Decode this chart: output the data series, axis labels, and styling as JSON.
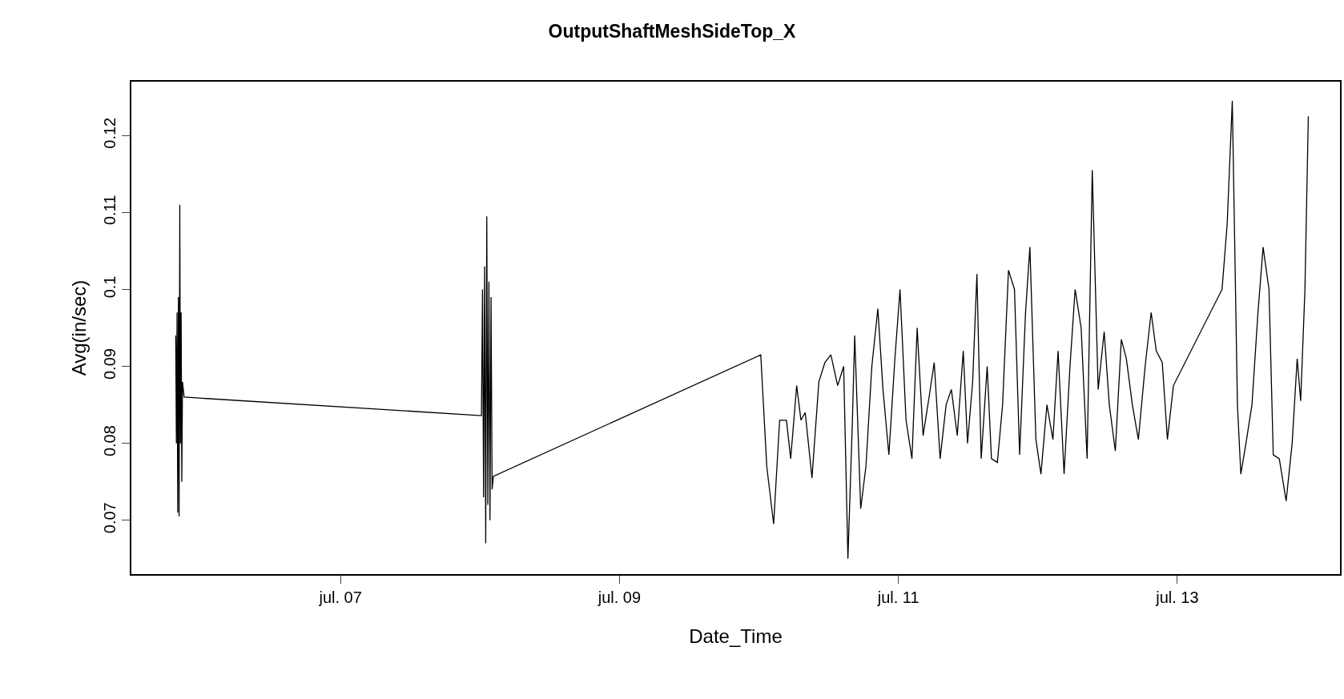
{
  "chart_data": {
    "type": "line",
    "title": "OutputShaftMeshSideTop_X",
    "xlabel": "Date_Time",
    "ylabel": "Avg(in/sec)",
    "marker": "none",
    "line_style": "solid",
    "xlim": [
      "--07-05T12:00",
      "--07-14T04:00"
    ],
    "xticks": [
      {
        "value": "--07-07",
        "label": "jul. 07"
      },
      {
        "value": "--07-09",
        "label": "jul. 09"
      },
      {
        "value": "--07-11",
        "label": "jul. 11"
      },
      {
        "value": "--07-13",
        "label": "jul. 13"
      }
    ],
    "ylim": [
      0.063,
      0.127
    ],
    "yticks": [
      0.07,
      0.08,
      0.09,
      0.1,
      0.11,
      0.12
    ],
    "series": [
      {
        "color": "#000000",
        "x": [
          "--07-05T19:38",
          "--07-05T19:45",
          "--07-05T19:52",
          "--07-05T19:59",
          "--07-05T20:06",
          "--07-05T20:13",
          "--07-05T20:20",
          "--07-05T20:27",
          "--07-05T20:34",
          "--07-05T20:41",
          "--07-05T20:48",
          "--07-05T21:05",
          "--07-08T00:15",
          "--07-08T00:26",
          "--07-08T00:37",
          "--07-08T00:48",
          "--07-08T00:59",
          "--07-08T01:10",
          "--07-08T01:21",
          "--07-08T01:32",
          "--07-08T01:43",
          "--07-08T01:54",
          "--07-08T02:05",
          "--07-08T02:18",
          "--07-10T00:19",
          "--07-10T01:21",
          "--07-10T02:32",
          "--07-10T03:34",
          "--07-10T04:44",
          "--07-10T05:28",
          "--07-10T06:30",
          "--07-10T07:14",
          "--07-10T07:58",
          "--07-10T09:08",
          "--07-10T10:19",
          "--07-10T11:21",
          "--07-10T12:23",
          "--07-10T13:33",
          "--07-10T14:35",
          "--07-10T15:19",
          "--07-10T16:03",
          "--07-10T16:29",
          "--07-10T17:31",
          "--07-10T18:25",
          "--07-10T19:26",
          "--07-10T20:28",
          "--07-10T21:21",
          "--07-10T22:22",
          "--07-10T23:24",
          "--07-11T00:17",
          "--07-11T01:19",
          "--07-11T02:20",
          "--07-11T03:14",
          "--07-11T04:15",
          "--07-11T05:17",
          "--07-11T06:10",
          "--07-11T07:11",
          "--07-11T08:13",
          "--07-11T09:07",
          "--07-11T10:08",
          "--07-11T11:10",
          "--07-11T11:54",
          "--07-11T12:47",
          "--07-11T13:31",
          "--07-11T14:15",
          "--07-11T15:17",
          "--07-11T16:01",
          "--07-11T17:02",
          "--07-11T17:56",
          "--07-11T18:57",
          "--07-11T19:59",
          "--07-11T20:52",
          "--07-11T21:53",
          "--07-11T22:38",
          "--07-11T23:40",
          "--07-12T00:32",
          "--07-12T01:34",
          "--07-12T02:36",
          "--07-12T03:29",
          "--07-12T04:31",
          "--07-12T05:32",
          "--07-12T06:25",
          "--07-12T07:27",
          "--07-12T08:29",
          "--07-12T09:22",
          "--07-12T10:23",
          "--07-12T11:25",
          "--07-12T12:18",
          "--07-12T13:20",
          "--07-12T14:22",
          "--07-12T15:14",
          "--07-12T16:16",
          "--07-12T17:18",
          "--07-12T18:28",
          "--07-12T19:30",
          "--07-12T20:23",
          "--07-12T21:25",
          "--07-12T22:18",
          "--07-12T23:20",
          "--07-13T07:42",
          "--07-13T08:35",
          "--07-13T09:28",
          "--07-13T10:21",
          "--07-13T10:56",
          "--07-13T11:49",
          "--07-13T12:51",
          "--07-13T13:53",
          "--07-13T14:46",
          "--07-13T15:47",
          "--07-13T16:31",
          "--07-13T17:33",
          "--07-13T18:44",
          "--07-13T19:46",
          "--07-13T20:38",
          "--07-13T21:14",
          "--07-13T21:58",
          "--07-13T22:33"
        ],
        "values": [
          0.094,
          0.08,
          0.097,
          0.071,
          0.099,
          0.0705,
          0.111,
          0.08,
          0.097,
          0.075,
          0.088,
          0.086,
          0.0836,
          0.1,
          0.073,
          0.103,
          0.067,
          0.1095,
          0.072,
          0.101,
          0.07,
          0.099,
          0.074,
          0.0757,
          0.0915,
          0.077,
          0.0695,
          0.083,
          0.083,
          0.078,
          0.0875,
          0.083,
          0.084,
          0.0755,
          0.088,
          0.0905,
          0.0915,
          0.0875,
          0.09,
          0.065,
          0.082,
          0.094,
          0.0715,
          0.077,
          0.09,
          0.0975,
          0.087,
          0.0785,
          0.091,
          0.1,
          0.083,
          0.078,
          0.095,
          0.081,
          0.086,
          0.0905,
          0.078,
          0.085,
          0.087,
          0.081,
          0.092,
          0.08,
          0.088,
          0.102,
          0.078,
          0.09,
          0.078,
          0.0775,
          0.085,
          0.1025,
          0.1,
          0.0785,
          0.097,
          0.1055,
          0.0805,
          0.076,
          0.085,
          0.0805,
          0.092,
          0.076,
          0.09,
          0.1,
          0.095,
          0.078,
          0.1155,
          0.087,
          0.0945,
          0.085,
          0.079,
          0.0935,
          0.091,
          0.085,
          0.0805,
          0.09,
          0.097,
          0.092,
          0.0905,
          0.0805,
          0.0875,
          0.1,
          0.1085,
          0.1245,
          0.085,
          0.076,
          0.08,
          0.085,
          0.097,
          0.1055,
          0.1,
          0.0785,
          0.078,
          0.0725,
          0.08,
          0.091,
          0.0855,
          0.1,
          0.1225
        ]
      }
    ]
  }
}
